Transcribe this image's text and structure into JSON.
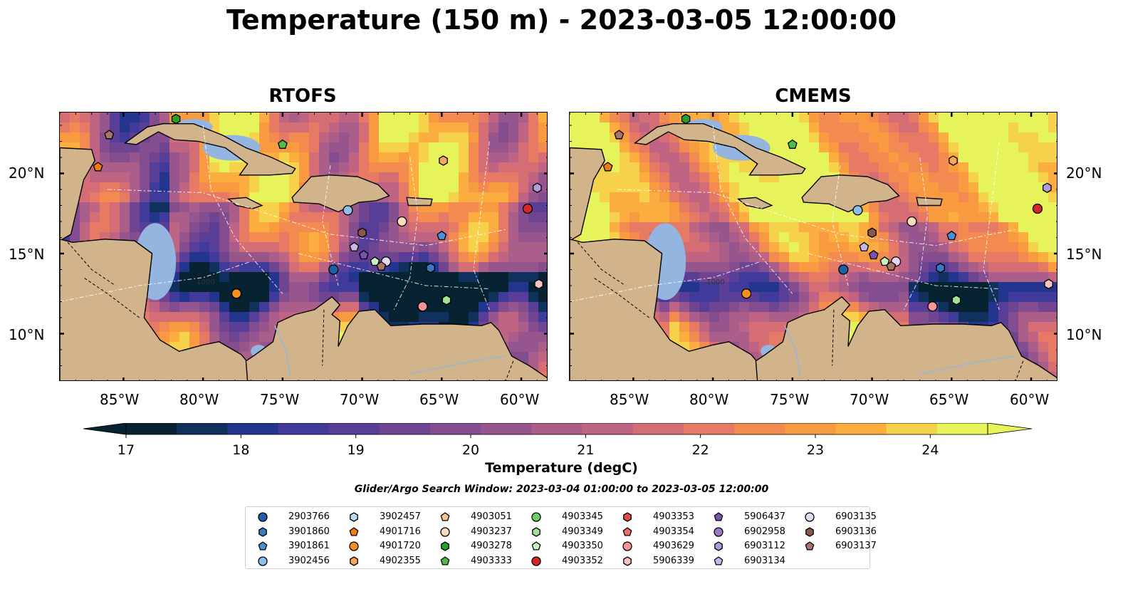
{
  "title": "Temperature (150 m) - 2023-03-05 12:00:00",
  "panels": [
    {
      "title": "RTOFS",
      "model": "rtofs"
    },
    {
      "title": "CMEMS",
      "model": "cmems"
    }
  ],
  "lon_ticks": [
    "85°W",
    "80°W",
    "75°W",
    "70°W",
    "65°W",
    "60°W"
  ],
  "lat_ticks": [
    "20°N",
    "15°N",
    "10°N"
  ],
  "colorbar": {
    "label": "Temperature (degC)",
    "ticks": [
      "17",
      "18",
      "19",
      "20",
      "21",
      "22",
      "23",
      "24"
    ],
    "colors": [
      "#072231",
      "#10305d",
      "#23358c",
      "#403a9a",
      "#593e98",
      "#6f4592",
      "#834d8f",
      "#96558d",
      "#ab5e89",
      "#c06483",
      "#d46d74",
      "#e67a64",
      "#f38a4f",
      "#f89a40",
      "#fbae3f",
      "#f5d14c",
      "#e7f35a"
    ],
    "min": 17,
    "max": 24.5
  },
  "search_window": "Glider/Argo Search Window: 2023-03-04 01:00:00 to 2023-03-05 12:00:00",
  "contour_label": "1000",
  "legend": [
    {
      "id": "2903766",
      "color": "#1f5fa8",
      "shape": "circle"
    },
    {
      "id": "3901860",
      "color": "#3c78c0",
      "shape": "hexagon"
    },
    {
      "id": "3901861",
      "color": "#4d8fd0",
      "shape": "pentagon"
    },
    {
      "id": "3902456",
      "color": "#8cbfeb",
      "shape": "circle"
    },
    {
      "id": "3902457",
      "color": "#bcdaf3",
      "shape": "hexagon"
    },
    {
      "id": "4901716",
      "color": "#f07b0f",
      "shape": "pentagon"
    },
    {
      "id": "4901720",
      "color": "#f5901e",
      "shape": "circle"
    },
    {
      "id": "4902355",
      "color": "#f7a85a",
      "shape": "hexagon"
    },
    {
      "id": "4903051",
      "color": "#f9c48e",
      "shape": "pentagon"
    },
    {
      "id": "4903237",
      "color": "#fbdcbd",
      "shape": "circle"
    },
    {
      "id": "4903278",
      "color": "#2a9e2a",
      "shape": "hexagon"
    },
    {
      "id": "4903333",
      "color": "#4fbd45",
      "shape": "pentagon"
    },
    {
      "id": "4903345",
      "color": "#6ccf63",
      "shape": "circle"
    },
    {
      "id": "4903349",
      "color": "#9fe394",
      "shape": "hexagon"
    },
    {
      "id": "4903350",
      "color": "#c8f4c0",
      "shape": "pentagon"
    },
    {
      "id": "4903352",
      "color": "#d62728",
      "shape": "circle"
    },
    {
      "id": "4903353",
      "color": "#e24a4a",
      "shape": "hexagon"
    },
    {
      "id": "4903354",
      "color": "#ee6b6b",
      "shape": "pentagon"
    },
    {
      "id": "4903629",
      "color": "#f59595",
      "shape": "circle"
    },
    {
      "id": "5906339",
      "color": "#f9c3c3",
      "shape": "hexagon"
    },
    {
      "id": "5906437",
      "color": "#7c52b0",
      "shape": "pentagon"
    },
    {
      "id": "6902958",
      "color": "#9b78c9",
      "shape": "circle"
    },
    {
      "id": "6903112",
      "color": "#b59ad9",
      "shape": "hexagon"
    },
    {
      "id": "6903134",
      "color": "#cbb6e8",
      "shape": "pentagon"
    },
    {
      "id": "6903135",
      "color": "#e4d6f4",
      "shape": "circle"
    },
    {
      "id": "6903136",
      "color": "#8c564b",
      "shape": "hexagon"
    },
    {
      "id": "6903137",
      "color": "#a9746a",
      "shape": "pentagon"
    }
  ],
  "floats": [
    {
      "id": "6903137",
      "lon": -85.9,
      "lat": 22.4
    },
    {
      "id": "4903278",
      "lon": -81.7,
      "lat": 23.4
    },
    {
      "id": "4901716",
      "lon": -86.6,
      "lat": 20.4
    },
    {
      "id": "4903333",
      "lon": -75.0,
      "lat": 21.8
    },
    {
      "id": "4902355",
      "lon": -64.9,
      "lat": 20.8
    },
    {
      "id": "6903112",
      "lon": -59.0,
      "lat": 19.1
    },
    {
      "id": "4903352",
      "lon": -59.6,
      "lat": 17.8
    },
    {
      "id": "3902456",
      "lon": -70.9,
      "lat": 17.7
    },
    {
      "id": "4903237",
      "lon": -67.5,
      "lat": 17.0
    },
    {
      "id": "3901861",
      "lon": -65.0,
      "lat": 16.1
    },
    {
      "id": "6903136",
      "lon": -70.0,
      "lat": 16.3
    },
    {
      "id": "6903134",
      "lon": -70.5,
      "lat": 15.4
    },
    {
      "id": "5906437",
      "lon": -69.9,
      "lat": 14.9
    },
    {
      "id": "4903350",
      "lon": -69.2,
      "lat": 14.5
    },
    {
      "id": "6903135",
      "lon": -68.5,
      "lat": 14.5
    },
    {
      "id": "6903137",
      "lon": -68.8,
      "lat": 14.2
    },
    {
      "id": "3901860",
      "lon": -65.7,
      "lat": 14.1
    },
    {
      "id": "2903766",
      "lon": -71.8,
      "lat": 14.0
    },
    {
      "id": "4901720",
      "lon": -77.9,
      "lat": 12.5
    },
    {
      "id": "4903349",
      "lon": -64.7,
      "lat": 12.1
    },
    {
      "id": "4903629",
      "lon": -66.2,
      "lat": 11.7
    },
    {
      "id": "5906339",
      "lon": -58.9,
      "lat": 13.1
    }
  ],
  "map_extent": {
    "lon": [
      -89.0,
      -58.3
    ],
    "lat": [
      7.0,
      23.8
    ]
  }
}
